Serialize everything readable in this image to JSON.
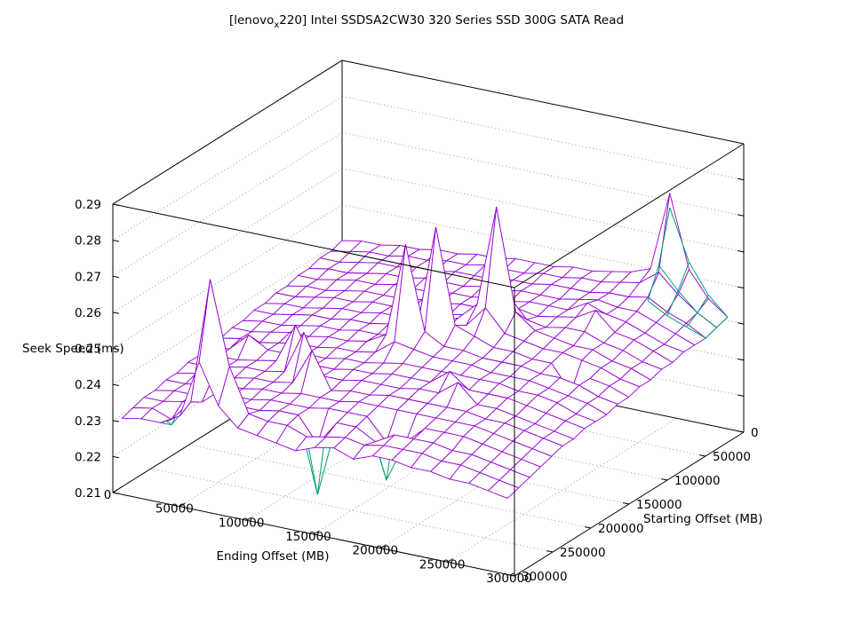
{
  "title": {
    "prefix": "[lenovo",
    "subscript": "x",
    "suffix": "220] Intel SSDSA2CW30 320 Series SSD 300G SATA Read"
  },
  "colors": {
    "surface_primary": "#9400d3",
    "surface_secondary": "#009e73",
    "grid_line": "#9a9a9a",
    "border": "#000000",
    "background": "#ffffff"
  },
  "chart_data": {
    "type": "surface",
    "render": "3d-wireframe with hidden-line removal (gnuplot style)",
    "title": "[lenovo_x220] Intel SSDSA2CW30 320 Series SSD 300G SATA Read",
    "xlabel": "Ending Offset (MB)",
    "ylabel": "Starting Offset (MB)",
    "zlabel": "Seek Speed (ms)",
    "xlim": [
      0,
      300000
    ],
    "ylim": [
      0,
      300000
    ],
    "zlim": [
      0.21,
      0.29
    ],
    "xticks": [
      0,
      50000,
      100000,
      150000,
      200000,
      250000,
      300000
    ],
    "yticks": [
      0,
      50000,
      100000,
      150000,
      200000,
      250000,
      300000
    ],
    "zticks": [
      0.21,
      0.22,
      0.23,
      0.24,
      0.25,
      0.26,
      0.27,
      0.28,
      0.29
    ],
    "grid": true,
    "legend": false,
    "surface": {
      "name": "seek-speed-read",
      "color": "#9400d3",
      "x_start": 0,
      "x_step": 14400,
      "y_start": 0,
      "y_step": 14400,
      "z": [
        [
          0.24,
          0.241,
          0.241,
          0.242,
          0.242,
          0.243,
          0.243,
          0.244,
          0.244,
          0.245,
          0.245,
          0.245,
          0.246,
          0.246,
          0.247,
          0.248,
          0.25,
          0.272,
          0.252,
          0.245,
          0.241
        ],
        [
          0.239,
          0.24,
          0.241,
          0.241,
          0.242,
          0.242,
          0.243,
          0.243,
          0.244,
          0.244,
          0.244,
          0.245,
          0.245,
          0.246,
          0.246,
          0.247,
          0.248,
          0.252,
          0.247,
          0.243,
          0.24
        ],
        [
          0.239,
          0.239,
          0.24,
          0.241,
          0.241,
          0.242,
          0.242,
          0.243,
          0.243,
          0.243,
          0.244,
          0.244,
          0.245,
          0.245,
          0.245,
          0.246,
          0.246,
          0.247,
          0.244,
          0.242,
          0.239
        ],
        [
          0.238,
          0.239,
          0.239,
          0.24,
          0.241,
          0.241,
          0.242,
          0.242,
          0.242,
          0.243,
          0.243,
          0.244,
          0.244,
          0.244,
          0.245,
          0.246,
          0.245,
          0.245,
          0.243,
          0.241,
          0.239
        ],
        [
          0.238,
          0.238,
          0.239,
          0.24,
          0.24,
          0.241,
          0.241,
          0.241,
          0.242,
          0.242,
          0.243,
          0.243,
          0.244,
          0.244,
          0.244,
          0.247,
          0.245,
          0.244,
          0.242,
          0.24,
          0.239
        ],
        [
          0.237,
          0.238,
          0.238,
          0.239,
          0.24,
          0.24,
          0.24,
          0.241,
          0.241,
          0.242,
          0.242,
          0.243,
          0.244,
          0.243,
          0.244,
          0.245,
          0.248,
          0.243,
          0.242,
          0.24,
          0.238
        ],
        [
          0.237,
          0.237,
          0.238,
          0.239,
          0.239,
          0.24,
          0.24,
          0.24,
          0.241,
          0.241,
          0.242,
          0.243,
          0.25,
          0.244,
          0.243,
          0.244,
          0.244,
          0.242,
          0.241,
          0.239,
          0.238
        ],
        [
          0.236,
          0.237,
          0.237,
          0.238,
          0.239,
          0.239,
          0.24,
          0.24,
          0.241,
          0.241,
          0.243,
          0.248,
          0.276,
          0.248,
          0.244,
          0.243,
          0.242,
          0.242,
          0.24,
          0.239,
          0.237
        ],
        [
          0.236,
          0.236,
          0.237,
          0.238,
          0.238,
          0.239,
          0.239,
          0.24,
          0.24,
          0.241,
          0.242,
          0.244,
          0.25,
          0.244,
          0.243,
          0.242,
          0.242,
          0.241,
          0.24,
          0.238,
          0.237
        ],
        [
          0.235,
          0.236,
          0.236,
          0.237,
          0.238,
          0.238,
          0.239,
          0.239,
          0.24,
          0.242,
          0.272,
          0.246,
          0.244,
          0.242,
          0.242,
          0.241,
          0.241,
          0.234,
          0.239,
          0.238,
          0.236
        ],
        [
          0.235,
          0.235,
          0.236,
          0.237,
          0.237,
          0.238,
          0.238,
          0.239,
          0.242,
          0.268,
          0.245,
          0.242,
          0.242,
          0.241,
          0.241,
          0.241,
          0.24,
          0.24,
          0.239,
          0.237,
          0.236
        ],
        [
          0.234,
          0.235,
          0.235,
          0.236,
          0.237,
          0.237,
          0.238,
          0.238,
          0.239,
          0.243,
          0.242,
          0.241,
          0.241,
          0.241,
          0.24,
          0.24,
          0.24,
          0.239,
          0.238,
          0.237,
          0.235
        ],
        [
          0.234,
          0.234,
          0.239,
          0.236,
          0.236,
          0.237,
          0.237,
          0.238,
          0.238,
          0.239,
          0.24,
          0.24,
          0.24,
          0.24,
          0.24,
          0.24,
          0.239,
          0.239,
          0.238,
          0.236,
          0.235
        ],
        [
          0.233,
          0.234,
          0.234,
          0.235,
          0.236,
          0.247,
          0.237,
          0.237,
          0.238,
          0.238,
          0.239,
          0.239,
          0.239,
          0.243,
          0.239,
          0.239,
          0.239,
          0.238,
          0.237,
          0.236,
          0.235
        ],
        [
          0.233,
          0.233,
          0.234,
          0.235,
          0.235,
          0.236,
          0.248,
          0.237,
          0.237,
          0.238,
          0.238,
          0.238,
          0.239,
          0.239,
          0.243,
          0.238,
          0.238,
          0.237,
          0.236,
          0.235,
          0.234
        ],
        [
          0.232,
          0.233,
          0.233,
          0.234,
          0.235,
          0.235,
          0.236,
          0.246,
          0.236,
          0.237,
          0.237,
          0.238,
          0.238,
          0.238,
          0.238,
          0.238,
          0.237,
          0.237,
          0.236,
          0.235,
          0.234
        ],
        [
          0.232,
          0.232,
          0.233,
          0.234,
          0.234,
          0.235,
          0.235,
          0.236,
          0.236,
          0.236,
          0.237,
          0.237,
          0.237,
          0.237,
          0.237,
          0.237,
          0.237,
          0.236,
          0.235,
          0.234,
          0.233
        ],
        [
          0.231,
          0.232,
          0.232,
          0.233,
          0.234,
          0.234,
          0.235,
          0.235,
          0.235,
          0.236,
          0.236,
          0.236,
          0.23,
          0.231,
          0.236,
          0.236,
          0.236,
          0.235,
          0.234,
          0.233,
          0.232
        ],
        [
          0.231,
          0.231,
          0.232,
          0.233,
          0.246,
          0.234,
          0.234,
          0.235,
          0.235,
          0.228,
          0.235,
          0.235,
          0.232,
          0.235,
          0.235,
          0.235,
          0.234,
          0.234,
          0.233,
          0.232,
          0.231
        ],
        [
          0.23,
          0.231,
          0.229,
          0.235,
          0.27,
          0.247,
          0.235,
          0.234,
          0.234,
          0.232,
          0.233,
          0.234,
          0.233,
          0.234,
          0.234,
          0.234,
          0.233,
          0.233,
          0.232,
          0.231,
          0.23
        ],
        [
          0.229,
          0.23,
          0.23,
          0.233,
          0.249,
          0.238,
          0.233,
          0.232,
          0.231,
          0.23,
          0.232,
          0.233,
          0.231,
          0.233,
          0.233,
          0.232,
          0.232,
          0.231,
          0.231,
          0.23,
          0.229
        ]
      ]
    },
    "surface2": {
      "name": "seek-speed-secondary",
      "color": "#009e73",
      "corner_patch": {
        "i_start": 17,
        "j_start": 0,
        "z": [
          [
            0.268,
            0.254,
            0.246,
            0.241
          ],
          [
            0.254,
            0.248,
            0.243,
            0.24
          ],
          [
            0.246,
            0.243,
            0.241,
            0.239
          ]
        ]
      },
      "down_spikes": [
        {
          "i": 9,
          "j": 18,
          "z": 0.214
        },
        {
          "i": 12,
          "j": 17,
          "z": 0.2195
        },
        {
          "i": 13,
          "j": 17,
          "z": 0.227
        },
        {
          "i": 2,
          "j": 19,
          "z": 0.2275
        },
        {
          "i": 17,
          "j": 9,
          "z": 0.2275
        }
      ]
    }
  }
}
